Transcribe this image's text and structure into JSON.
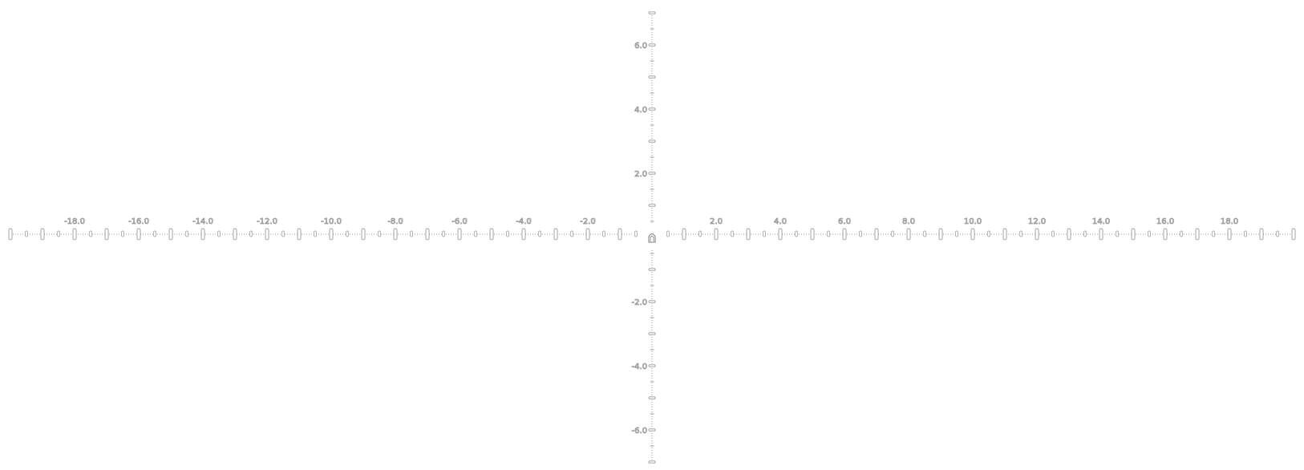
{
  "reticle": {
    "x_axis": {
      "labels": [
        "-18.0",
        "-16.0",
        "-14.0",
        "-12.0",
        "-10.0",
        "-8.0",
        "-6.0",
        "-4.0",
        "-2.0",
        "2.0",
        "4.0",
        "6.0",
        "8.0",
        "10.0",
        "12.0",
        "14.0",
        "16.0",
        "18.0"
      ],
      "range": [
        -20,
        20
      ],
      "major_step": 1,
      "minor_step": 0.5,
      "label_step": 2
    },
    "y_axis": {
      "labels": [
        "6.0",
        "4.0",
        "2.0",
        "-2.0",
        "-4.0",
        "-6.0"
      ],
      "range": [
        -7,
        7
      ],
      "major_step": 1,
      "minor_step": 0.5,
      "label_step": 2
    },
    "colors": {
      "stroke": "#9a9a9a",
      "label": "#9a9a9a",
      "background": "#ffffff"
    },
    "center_marker": "chevron-up-icon"
  }
}
